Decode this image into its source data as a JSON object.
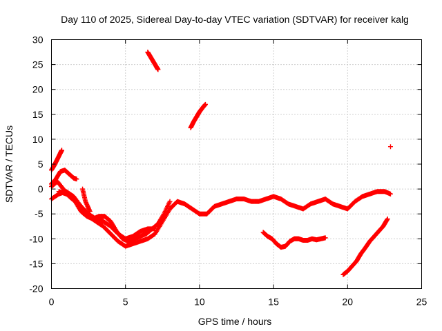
{
  "chart_data": {
    "type": "scatter",
    "title": "Day 110 of 2025, Sidereal Day-to-day VTEC variation (SDTVAR) for receiver kalg",
    "xlabel": "GPS time / hours",
    "ylabel": "SDTVAR / TECUs",
    "xlim": [
      0,
      25
    ],
    "ylim": [
      -20,
      30
    ],
    "xticks": [
      0,
      5,
      10,
      15,
      20,
      25
    ],
    "yticks": [
      -20,
      -15,
      -10,
      -5,
      0,
      5,
      10,
      15,
      20,
      25,
      30
    ],
    "grid": true,
    "marker": "+",
    "color": "#ff0000",
    "series": [
      {
        "name": "arc-1",
        "x": [
          0.0,
          0.2,
          0.4,
          0.6,
          0.7
        ],
        "y": [
          3.8,
          4.8,
          6.0,
          7.2,
          7.8
        ]
      },
      {
        "name": "arc-2",
        "x": [
          0.0,
          0.3,
          0.6,
          0.9,
          1.2,
          1.5,
          1.7
        ],
        "y": [
          1.0,
          2.0,
          3.5,
          3.8,
          3.0,
          2.2,
          2.0
        ]
      },
      {
        "name": "arc-3",
        "x": [
          0.0,
          0.5,
          1.0,
          1.5,
          2.0,
          2.5,
          3.0,
          3.5,
          4.0,
          4.5,
          5.0,
          5.5,
          6.0,
          6.5,
          7.0,
          7.5,
          8.0,
          8.5,
          9.0,
          9.5,
          10.0,
          10.5,
          11.0,
          11.5,
          12.0,
          12.5,
          13.0,
          13.5,
          14.0,
          14.5,
          15.0,
          15.5,
          16.0,
          16.5,
          17.0,
          17.5,
          18.0,
          18.5,
          19.0,
          19.5,
          20.0,
          20.5,
          21.0,
          21.5,
          22.0,
          22.5,
          22.9
        ],
        "y": [
          -2.0,
          -1.0,
          -0.5,
          -1.5,
          -3.5,
          -5.5,
          -6.5,
          -7.5,
          -9.0,
          -10.5,
          -11.5,
          -11.0,
          -10.5,
          -10.0,
          -9.0,
          -6.5,
          -4.0,
          -2.5,
          -3.0,
          -4.0,
          -5.0,
          -5.0,
          -3.5,
          -3.0,
          -2.5,
          -2.0,
          -2.0,
          -2.5,
          -2.5,
          -2.0,
          -1.5,
          -2.0,
          -3.0,
          -3.5,
          -4.0,
          -3.0,
          -2.5,
          -2.0,
          -3.0,
          -3.5,
          -4.0,
          -2.5,
          -1.5,
          -1.0,
          -0.5,
          -0.5,
          -1.0
        ]
      },
      {
        "name": "arc-4",
        "x": [
          0.0,
          0.4,
          0.8,
          1.2,
          1.6,
          2.0,
          2.4,
          2.8,
          3.2,
          3.6,
          4.0,
          4.4,
          4.8,
          5.2,
          5.6,
          6.0,
          6.4,
          6.8,
          7.2,
          7.6,
          8.0
        ],
        "y": [
          0.5,
          1.5,
          0.0,
          -1.5,
          -2.5,
          -4.5,
          -5.5,
          -6.0,
          -5.5,
          -5.5,
          -6.5,
          -8.5,
          -10.0,
          -10.5,
          -10.0,
          -9.5,
          -9.0,
          -8.0,
          -7.0,
          -5.0,
          -2.5
        ]
      },
      {
        "name": "arc-5",
        "x": [
          0.5,
          1.0,
          1.5,
          2.0,
          2.5,
          3.0,
          3.5,
          4.0,
          4.5,
          5.0,
          5.5,
          6.0,
          6.5,
          7.0
        ],
        "y": [
          -0.5,
          -1.0,
          -2.0,
          -3.5,
          -5.0,
          -6.0,
          -6.5,
          -7.5,
          -9.0,
          -10.0,
          -9.5,
          -8.5,
          -8.0,
          -8.0
        ]
      },
      {
        "name": "arc-6",
        "x": [
          2.1,
          2.3,
          2.6
        ],
        "y": [
          0.0,
          -2.5,
          -4.5
        ]
      },
      {
        "name": "arc-7",
        "x": [
          6.5,
          6.7,
          6.9,
          7.1,
          7.2
        ],
        "y": [
          27.5,
          26.5,
          25.5,
          24.5,
          24.0
        ]
      },
      {
        "name": "arc-8",
        "x": [
          9.4,
          9.6,
          9.8,
          10.0,
          10.2,
          10.4
        ],
        "y": [
          12.3,
          13.5,
          14.5,
          15.5,
          16.3,
          17.0
        ]
      },
      {
        "name": "arc-9",
        "x": [
          14.3,
          14.6,
          14.9,
          15.2,
          15.5,
          15.8,
          16.1,
          16.4,
          16.7,
          17.0,
          17.3,
          17.6,
          17.9,
          18.2,
          18.5
        ],
        "y": [
          -8.7,
          -9.5,
          -10.0,
          -11.0,
          -11.7,
          -11.5,
          -10.5,
          -10.0,
          -10.0,
          -10.3,
          -10.3,
          -10.0,
          -10.2,
          -10.0,
          -9.8
        ]
      },
      {
        "name": "arc-10",
        "x": [
          19.7,
          20.0,
          20.3,
          20.6,
          20.9,
          21.2,
          21.5,
          21.8,
          22.1,
          22.4,
          22.7
        ],
        "y": [
          -17.2,
          -16.5,
          -15.5,
          -14.5,
          -13.0,
          -11.8,
          -10.5,
          -9.5,
          -8.5,
          -7.5,
          -6.0
        ]
      },
      {
        "name": "arc-11",
        "x": [
          22.9
        ],
        "y": [
          8.5
        ]
      }
    ]
  }
}
